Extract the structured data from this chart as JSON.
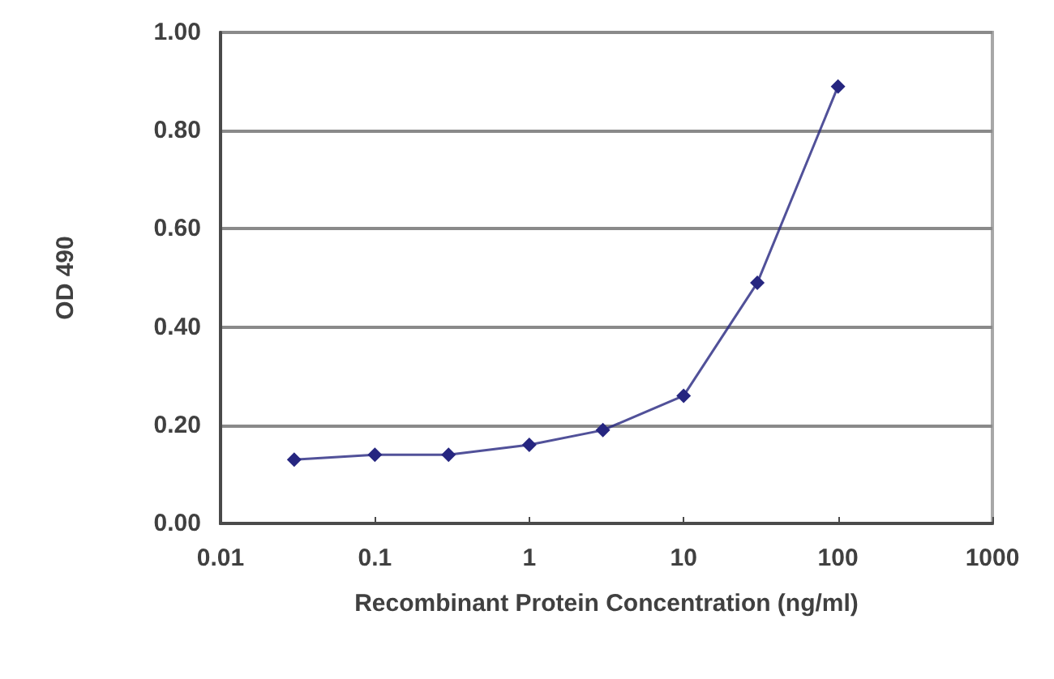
{
  "chart_data": {
    "type": "line",
    "xlabel": "Recombinant Protein Concentration (ng/ml)",
    "ylabel": "OD 490",
    "x": [
      0.03,
      0.1,
      0.3,
      1,
      3,
      10,
      30,
      100
    ],
    "values": [
      0.13,
      0.14,
      0.14,
      0.16,
      0.19,
      0.26,
      0.49,
      0.89
    ],
    "color": "#262680",
    "log": "x",
    "xlim": [
      0.01,
      1000
    ],
    "xticks": [
      0.01,
      0.1,
      1,
      10,
      100,
      1000
    ],
    "ylim": [
      0,
      1
    ],
    "yticks": [
      {
        "value": 0,
        "label": "0.00"
      },
      {
        "value": 0.2,
        "label": "0.20"
      },
      {
        "value": 0.4,
        "label": "0.40"
      },
      {
        "value": 0.6,
        "label": "0.60"
      },
      {
        "value": 0.8,
        "label": "0.80"
      },
      {
        "value": 1,
        "label": "1.00"
      }
    ],
    "grid": "y",
    "marker": "diamond",
    "line_style": "solid"
  }
}
